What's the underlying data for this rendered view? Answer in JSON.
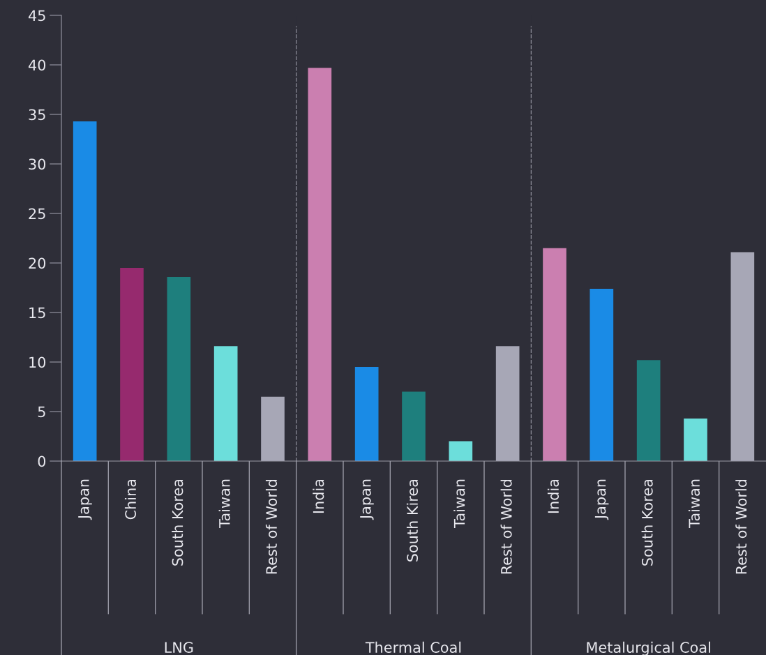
{
  "chart_data": [
    {
      "type": "bar",
      "xlabel": "LNG",
      "categories": [
        "Japan",
        "China",
        "South Korea",
        "Taiwan",
        "Rest of World"
      ],
      "values": [
        34.3,
        19.5,
        18.6,
        11.6,
        6.5
      ],
      "colors": [
        "#1a8be6",
        "#962a6e",
        "#1e7f7d",
        "#6cdedb",
        "#a7a7b6"
      ],
      "ylim": [
        0,
        45
      ],
      "yticks": [
        0,
        5,
        10,
        15,
        20,
        25,
        30,
        35,
        40,
        45
      ],
      "grid": false
    },
    {
      "type": "bar",
      "xlabel": "Thermal Coal",
      "categories": [
        "India",
        "Japan",
        "South Kirea",
        "Taiwan",
        "Rest of World"
      ],
      "values": [
        39.7,
        9.5,
        7.0,
        2.0,
        11.6
      ],
      "colors": [
        "#cb7fb0",
        "#1a8be6",
        "#1e7f7d",
        "#6cdedb",
        "#a7a7b6"
      ],
      "ylim": [
        0,
        45
      ],
      "yticks": [
        0,
        5,
        10,
        15,
        20,
        25,
        30,
        35,
        40,
        45
      ],
      "tick_labels": "x",
      "grid": false
    },
    {
      "type": "bar",
      "xlabel": "Metalurgical Coal",
      "categories": [
        "India",
        "Japan",
        "South Korea",
        "Taiwan",
        "Rest of World"
      ],
      "values": [
        21.5,
        17.4,
        10.2,
        4.3,
        21.1
      ],
      "colors": [
        "#cb7fb0",
        "#1a8be6",
        "#1e7f7d",
        "#6cdedb",
        "#a7a7b6"
      ],
      "ylim": [
        0,
        45
      ],
      "yticks": [
        0,
        5,
        10,
        15,
        20,
        25,
        30,
        35,
        40,
        45
      ],
      "tick_labels": "x",
      "grid": false
    }
  ]
}
